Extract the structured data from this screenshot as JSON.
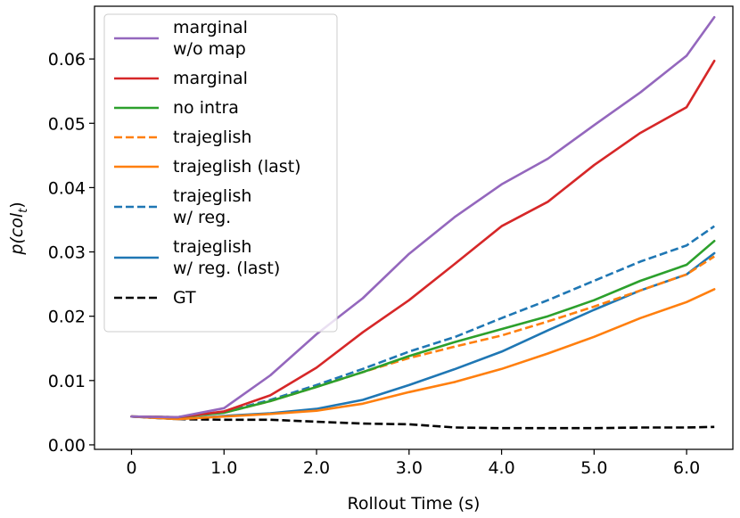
{
  "chart_data": {
    "type": "line",
    "title": "",
    "xlabel": "Rollout Time (s)",
    "ylabel": "p(col_t)",
    "ylabel_main": "p(col",
    "ylabel_sub": "t",
    "ylabel_close": ")",
    "xlim": [
      -0.4,
      6.5
    ],
    "ylim": [
      -0.0007,
      0.0682
    ],
    "xticks": [
      0,
      1,
      2,
      3,
      4,
      5,
      6
    ],
    "xtick_labels": [
      "0",
      "1.0",
      "2.0",
      "3.0",
      "4.0",
      "5.0",
      "6.0"
    ],
    "yticks": [
      0,
      0.01,
      0.02,
      0.03,
      0.04,
      0.05,
      0.06
    ],
    "ytick_labels": [
      "0.00",
      "0.01",
      "0.02",
      "0.03",
      "0.04",
      "0.05",
      "0.06"
    ],
    "grid": false,
    "legend_position": "upper-left",
    "x": [
      0,
      0.5,
      1.0,
      1.5,
      2.0,
      2.5,
      3.0,
      3.5,
      4.0,
      4.5,
      5.0,
      5.5,
      6.0,
      6.3
    ],
    "series": [
      {
        "name": "marginal w/o map",
        "lines": [
          "marginal",
          "w/o map"
        ],
        "color": "#9467bd",
        "dash": "solid",
        "values": [
          0.0044,
          0.0043,
          0.0057,
          0.0108,
          0.0172,
          0.0228,
          0.0297,
          0.0355,
          0.0405,
          0.0445,
          0.0497,
          0.0548,
          0.0605,
          0.0665
        ]
      },
      {
        "name": "marginal",
        "lines": [
          "marginal"
        ],
        "color": "#d62728",
        "dash": "solid",
        "values": [
          0.0044,
          0.0043,
          0.0052,
          0.0077,
          0.012,
          0.0175,
          0.0225,
          0.0282,
          0.034,
          0.0378,
          0.0435,
          0.0485,
          0.0525,
          0.0597
        ]
      },
      {
        "name": "no intra",
        "lines": [
          "no intra"
        ],
        "color": "#2ca02c",
        "dash": "solid",
        "values": [
          0.0044,
          0.0043,
          0.005,
          0.0068,
          0.009,
          0.0113,
          0.0138,
          0.016,
          0.018,
          0.02,
          0.0225,
          0.0255,
          0.028,
          0.0317
        ]
      },
      {
        "name": "trajeglish",
        "lines": [
          "trajeglish"
        ],
        "color": "#ff7f0e",
        "dash": "dashed",
        "values": [
          0.0044,
          0.0043,
          0.005,
          0.0068,
          0.009,
          0.0113,
          0.0135,
          0.0153,
          0.017,
          0.0192,
          0.0215,
          0.024,
          0.0265,
          0.0293
        ]
      },
      {
        "name": "trajeglish (last)",
        "lines": [
          "trajeglish (last)"
        ],
        "color": "#ff7f0e",
        "dash": "solid",
        "values": [
          0.0044,
          0.004,
          0.0044,
          0.0048,
          0.0053,
          0.0064,
          0.0082,
          0.0098,
          0.0118,
          0.0142,
          0.0168,
          0.0197,
          0.0222,
          0.0242
        ]
      },
      {
        "name": "trajeglish w/ reg.",
        "lines": [
          "trajeglish",
          "w/ reg."
        ],
        "color": "#1f77b4",
        "dash": "dashed",
        "values": [
          0.0044,
          0.0043,
          0.0051,
          0.007,
          0.0093,
          0.0118,
          0.0145,
          0.0168,
          0.0197,
          0.0225,
          0.0255,
          0.0285,
          0.031,
          0.034
        ]
      },
      {
        "name": "trajeglish w/ reg. (last)",
        "lines": [
          "trajeglish",
          "w/ reg. (last)"
        ],
        "color": "#1f77b4",
        "dash": "solid",
        "values": [
          0.0044,
          0.004,
          0.0045,
          0.0049,
          0.0056,
          0.007,
          0.0093,
          0.0118,
          0.0145,
          0.0178,
          0.021,
          0.024,
          0.0265,
          0.0298
        ]
      },
      {
        "name": "GT",
        "lines": [
          "GT"
        ],
        "color": "#000000",
        "dash": "dashed",
        "values": [
          0.0044,
          0.004,
          0.0039,
          0.0039,
          0.0036,
          0.0033,
          0.0032,
          0.0027,
          0.0026,
          0.0026,
          0.0026,
          0.0027,
          0.0027,
          0.0028
        ]
      }
    ]
  }
}
